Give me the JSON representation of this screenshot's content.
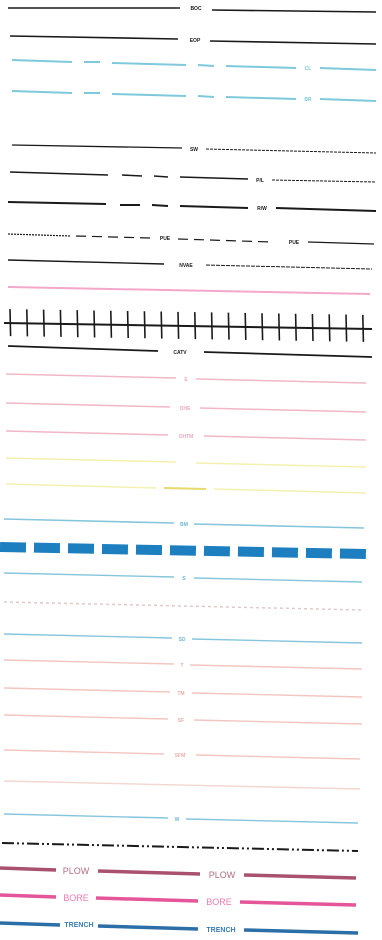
{
  "legend": {
    "rows": [
      {
        "id": "boc",
        "label": "BOC",
        "color": "#1a1a1a",
        "style": "solid"
      },
      {
        "id": "eop",
        "label": "EOP",
        "color": "#1a1a1a",
        "style": "solid"
      },
      {
        "id": "cl-blue",
        "label": "CL",
        "color": "#7ec9dc",
        "style": "dash-long-short"
      },
      {
        "id": "br-blue",
        "label": "BR",
        "color": "#7ec9dc",
        "style": "dash-long-short"
      },
      {
        "id": "sw",
        "label": "SW",
        "color": "#1a1a1a",
        "style": "solid"
      },
      {
        "id": "pl",
        "label": "P/L",
        "color": "#1a1a1a",
        "style": "dash-long-short"
      },
      {
        "id": "rw",
        "label": "R/W",
        "color": "#1a1a1a",
        "style": "dash-long-short"
      },
      {
        "id": "pue",
        "label": "PUE",
        "color": "#1a1a1a",
        "style": "dashed"
      },
      {
        "id": "nvae",
        "label": "NVAE",
        "color": "#1a1a1a",
        "style": "solid"
      },
      {
        "id": "pink-line",
        "label": "",
        "color": "#f4a7c9",
        "style": "solid"
      },
      {
        "id": "railroad",
        "label": "",
        "color": "#1a1a1a",
        "style": "railroad"
      },
      {
        "id": "catv",
        "label": "CATV",
        "color": "#1a1a1a",
        "style": "solid"
      },
      {
        "id": "e",
        "label": "E",
        "color": "#f2b7c6",
        "style": "solid"
      },
      {
        "id": "ohe",
        "label": "OHE",
        "color": "#f2b7c6",
        "style": "solid"
      },
      {
        "id": "ohtm",
        "label": "OHTM",
        "color": "#f2b7c6",
        "style": "solid"
      },
      {
        "id": "yellow-short",
        "label": "",
        "color": "#f3f0b0",
        "style": "solid"
      },
      {
        "id": "yellow-label",
        "label": "",
        "color": "#f3f0b0",
        "style": "solid"
      },
      {
        "id": "bm",
        "label": "BM",
        "color": "#86c6dc",
        "style": "solid"
      },
      {
        "id": "blue-thick",
        "label": "",
        "color": "#1e7fc0",
        "style": "thick-dashed"
      },
      {
        "id": "s",
        "label": "S",
        "color": "#86c6dc",
        "style": "solid"
      },
      {
        "id": "dotted-faint",
        "label": "",
        "color": "#e0c9c9",
        "style": "dotted"
      },
      {
        "id": "sd",
        "label": "SD",
        "color": "#86c6dc",
        "style": "solid"
      },
      {
        "id": "t",
        "label": "T",
        "color": "#f2c6bf",
        "style": "solid"
      },
      {
        "id": "tm",
        "label": "TM",
        "color": "#f2c6bf",
        "style": "solid"
      },
      {
        "id": "sf",
        "label": "SF",
        "color": "#f2c6bf",
        "style": "solid"
      },
      {
        "id": "sfm",
        "label": "SFM",
        "color": "#f2c6bf",
        "style": "solid"
      },
      {
        "id": "faint-line",
        "label": "",
        "color": "#f2d6cf",
        "style": "solid"
      },
      {
        "id": "w",
        "label": "W",
        "color": "#86c6dc",
        "style": "solid"
      },
      {
        "id": "dash-dot",
        "label": "",
        "color": "#1a1a1a",
        "style": "dash-dot-dot"
      },
      {
        "id": "plow",
        "label": "PLOW",
        "label2": "PLOW",
        "color": "#a9516f",
        "style": "thick-labeled"
      },
      {
        "id": "bore",
        "label": "BORE",
        "label2": "BORE",
        "color": "#e5559a",
        "style": "thick-labeled"
      },
      {
        "id": "trench",
        "label": "TRENCH",
        "label2": "TRENCH",
        "color": "#2b6ea8",
        "style": "thick-labeled"
      }
    ]
  }
}
